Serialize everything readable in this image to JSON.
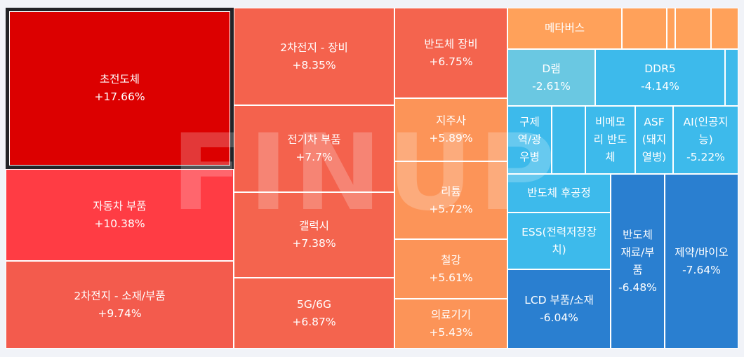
{
  "chart_data": {
    "type": "treemap",
    "watermark": "FINUP",
    "selected": "초전도체",
    "sectors": [
      {
        "name": "초전도체",
        "change": "+17.66%",
        "color": "#dc0000"
      },
      {
        "name": "자동차 부품",
        "change": "+10.38%",
        "color": "#ff3c44"
      },
      {
        "name": "2차전지 - 소재/부품",
        "change": "+9.74%",
        "color": "#f35b4d"
      },
      {
        "name": "2차전지 - 장비",
        "change": "+8.35%",
        "color": "#f4624d"
      },
      {
        "name": "전기차 부품",
        "change": "+7.7%",
        "color": "#f4624d"
      },
      {
        "name": "갤럭시",
        "change": "+7.38%",
        "color": "#f4644e"
      },
      {
        "name": "5G/6G",
        "change": "+6.87%",
        "color": "#f4644e"
      },
      {
        "name": "반도체 장비",
        "change": "+6.75%",
        "color": "#f4644e"
      },
      {
        "name": "지주사",
        "change": "+5.89%",
        "color": "#fc9458"
      },
      {
        "name": "리튬",
        "change": "+5.72%",
        "color": "#fc9458"
      },
      {
        "name": "철강",
        "change": "+5.61%",
        "color": "#fc9458"
      },
      {
        "name": "의료기기",
        "change": "+5.43%",
        "color": "#fc9458"
      },
      {
        "name": "메타버스",
        "change": "",
        "color": "#ffa15a"
      },
      {
        "name": "",
        "change": "",
        "color": "#ffa15a"
      },
      {
        "name": "",
        "change": "",
        "color": "#ffa15a"
      },
      {
        "name": "",
        "change": "",
        "color": "#ffa15a"
      },
      {
        "name": "",
        "change": "",
        "color": "#ffa15a"
      },
      {
        "name": "D램",
        "change": "-2.61%",
        "color": "#6ac8e2"
      },
      {
        "name": "DDR5",
        "change": "-4.14%",
        "color": "#3dbaeb"
      },
      {
        "name": "",
        "change": "",
        "color": "#3dbaeb"
      },
      {
        "name": "구제\n역/광\n우병",
        "change": "",
        "color": "#3dbaeb"
      },
      {
        "name": "",
        "change": "",
        "color": "#3dbaeb"
      },
      {
        "name": "비메모\n리 반도\n체",
        "change": "",
        "color": "#3dbaeb"
      },
      {
        "name": "ASF\n(돼지\n열병)",
        "change": "",
        "color": "#3dbaeb"
      },
      {
        "name": "AI(인공지\n능)",
        "change": "-5.22%",
        "color": "#3dbaeb"
      },
      {
        "name": "반도체 후공정",
        "change": "",
        "color": "#3dbaeb"
      },
      {
        "name": "ESS(전력저장장\n치)",
        "change": "",
        "color": "#3dbaeb"
      },
      {
        "name": "LCD 부품/소재",
        "change": "-6.04%",
        "color": "#2a7fd0"
      },
      {
        "name": "반도체\n재료/부\n품",
        "change": "-6.48%",
        "color": "#2a7fd0"
      },
      {
        "name": "제약/바이오",
        "change": "-7.64%",
        "color": "#2a7fd0"
      }
    ]
  }
}
